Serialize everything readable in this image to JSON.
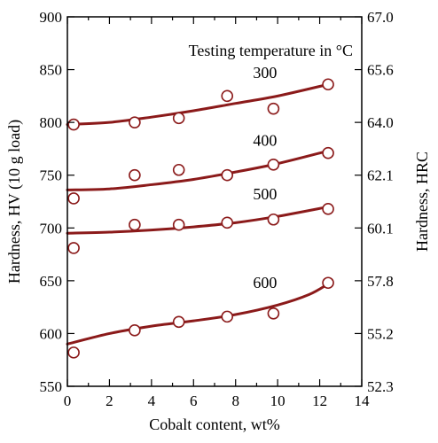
{
  "chart_data": {
    "type": "scatter",
    "title": "",
    "annotation": "Testing temperature in °C",
    "xlabel": "Cobalt content, wt%",
    "ylabel": "Hardness, HV (10 g load)",
    "y2label": "Hardness, HRC",
    "xlim": [
      0,
      14
    ],
    "ylim": [
      550,
      900
    ],
    "x_ticks": [
      0,
      2,
      4,
      6,
      8,
      10,
      12,
      14
    ],
    "y_ticks": [
      550,
      600,
      650,
      700,
      750,
      800,
      850,
      900
    ],
    "y2_ticks": [
      {
        "label": "52.3",
        "hv": 550
      },
      {
        "label": "55.2",
        "hv": 600
      },
      {
        "label": "57.8",
        "hv": 650
      },
      {
        "label": "60.1",
        "hv": 700
      },
      {
        "label": "62.1",
        "hv": 750
      },
      {
        "label": "64.0",
        "hv": 800
      },
      {
        "label": "65.6",
        "hv": 850
      },
      {
        "label": "67.0",
        "hv": 900
      }
    ],
    "grid": false,
    "line_color": "#8b1a1a",
    "series": [
      {
        "name": "300",
        "points": [
          [
            0.3,
            798
          ],
          [
            3.2,
            800
          ],
          [
            5.3,
            804
          ],
          [
            7.6,
            825
          ],
          [
            9.8,
            813
          ],
          [
            12.4,
            836
          ]
        ],
        "fit": [
          [
            0,
            798
          ],
          [
            2,
            800
          ],
          [
            4,
            805
          ],
          [
            6,
            811
          ],
          [
            8,
            818
          ],
          [
            10,
            825
          ],
          [
            12.4,
            836
          ]
        ],
        "label_pos": [
          9.4,
          842
        ]
      },
      {
        "name": "400",
        "points": [
          [
            0.3,
            728
          ],
          [
            3.2,
            750
          ],
          [
            5.3,
            755
          ],
          [
            7.6,
            750
          ],
          [
            9.8,
            760
          ],
          [
            12.4,
            771
          ]
        ],
        "fit": [
          [
            0,
            736
          ],
          [
            2,
            737
          ],
          [
            4,
            741
          ],
          [
            6,
            746
          ],
          [
            8,
            753
          ],
          [
            10,
            761
          ],
          [
            12.4,
            773
          ]
        ],
        "label_pos": [
          9.4,
          778
        ]
      },
      {
        "name": "500",
        "points": [
          [
            0.3,
            681
          ],
          [
            3.2,
            703
          ],
          [
            5.3,
            703
          ],
          [
            7.6,
            705
          ],
          [
            9.8,
            708
          ],
          [
            12.4,
            718
          ]
        ],
        "fit": [
          [
            0,
            695
          ],
          [
            2,
            696
          ],
          [
            4,
            698
          ],
          [
            6,
            701
          ],
          [
            8,
            705
          ],
          [
            10,
            711
          ],
          [
            12.4,
            720
          ]
        ],
        "label_pos": [
          9.4,
          727
        ]
      },
      {
        "name": "600",
        "points": [
          [
            0.3,
            582
          ],
          [
            3.2,
            603
          ],
          [
            5.3,
            611
          ],
          [
            7.6,
            616
          ],
          [
            9.8,
            619
          ],
          [
            12.4,
            648
          ]
        ],
        "fit": [
          [
            0,
            590
          ],
          [
            2,
            600
          ],
          [
            4,
            607
          ],
          [
            6,
            612
          ],
          [
            8,
            618
          ],
          [
            10,
            627
          ],
          [
            11.5,
            637
          ],
          [
            12.4,
            647
          ]
        ],
        "label_pos": [
          9.4,
          643
        ]
      }
    ]
  }
}
